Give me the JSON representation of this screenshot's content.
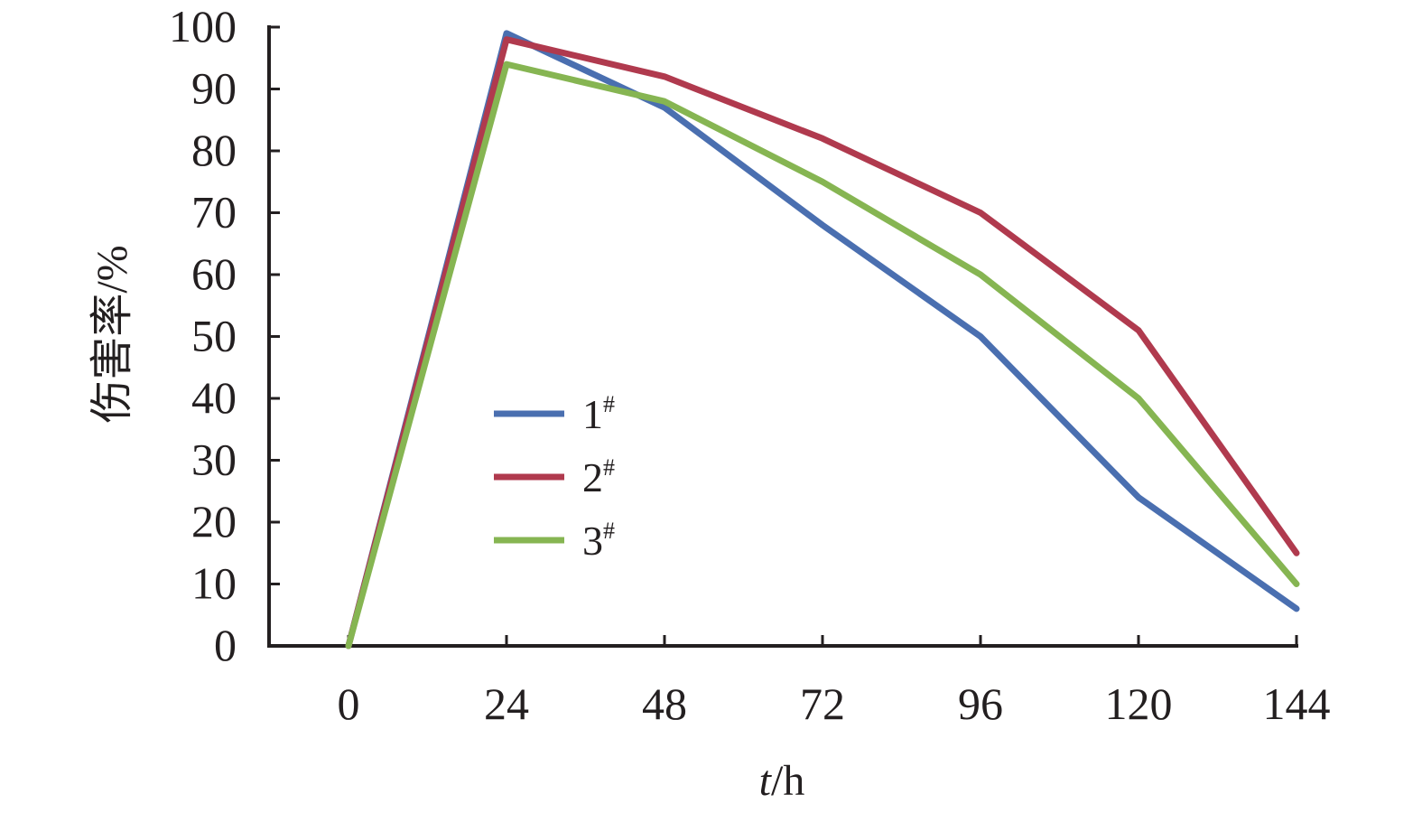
{
  "chart_data": {
    "type": "line",
    "title": "",
    "xlabel_var": "t",
    "xlabel_unit": "/h",
    "ylabel": "伤害率/%",
    "x": [
      0,
      24,
      48,
      72,
      96,
      120,
      144
    ],
    "x_ticks": [
      "0",
      "24",
      "48",
      "72",
      "96",
      "120",
      "144"
    ],
    "y_ticks": [
      "0",
      "10",
      "20",
      "30",
      "40",
      "50",
      "60",
      "70",
      "80",
      "90",
      "100"
    ],
    "ylim": [
      0,
      100
    ],
    "grid": false,
    "legend_position": "center-left",
    "series": [
      {
        "name": "1",
        "name_sup": "#",
        "color": "#4a6fb0",
        "values": [
          0,
          99,
          87,
          68,
          50,
          24,
          6
        ]
      },
      {
        "name": "2",
        "name_sup": "#",
        "color": "#b03a4e",
        "values": [
          0,
          98,
          92,
          82,
          70,
          51,
          15
        ]
      },
      {
        "name": "3",
        "name_sup": "#",
        "color": "#86b552",
        "values": [
          0,
          94,
          88,
          75,
          60,
          40,
          10
        ]
      }
    ]
  }
}
